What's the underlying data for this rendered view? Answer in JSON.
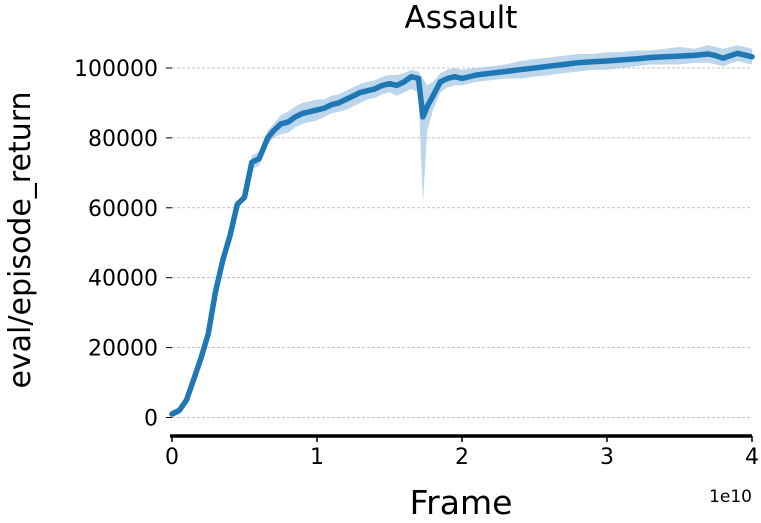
{
  "chart_data": {
    "type": "line",
    "title": "Assault",
    "xlabel": "Frame",
    "ylabel": "eval/episode_return",
    "x_offset_label": "1e10",
    "xlim": [
      0,
      4
    ],
    "ylim": [
      -3000,
      108000
    ],
    "xticks": [
      0,
      1,
      2,
      3,
      4
    ],
    "xtick_labels": [
      "0",
      "1",
      "2",
      "3",
      "4"
    ],
    "yticks": [
      0,
      20000,
      40000,
      60000,
      80000,
      100000
    ],
    "ytick_labels": [
      "0",
      "20000",
      "40000",
      "60000",
      "80000",
      "100000"
    ],
    "grid": "y-dashed",
    "line_color": "#1f77b4",
    "band_color": "#a6c8e6",
    "series": [
      {
        "x": [
          0.0,
          0.05,
          0.1,
          0.15,
          0.2,
          0.25,
          0.3,
          0.35,
          0.4,
          0.45,
          0.5,
          0.55,
          0.6,
          0.63,
          0.66,
          0.7,
          0.75,
          0.8,
          0.85,
          0.9,
          0.95,
          1.0,
          1.05,
          1.1,
          1.15,
          1.2,
          1.25,
          1.3,
          1.35,
          1.4,
          1.45,
          1.5,
          1.55,
          1.6,
          1.65,
          1.7,
          1.73,
          1.76,
          1.8,
          1.85,
          1.9,
          1.95,
          2.0,
          2.1,
          2.2,
          2.3,
          2.4,
          2.5,
          2.6,
          2.7,
          2.8,
          2.9,
          3.0,
          3.1,
          3.2,
          3.3,
          3.4,
          3.5,
          3.6,
          3.7,
          3.75,
          3.8,
          3.9,
          4.0
        ],
        "y": [
          1000,
          2000,
          5000,
          11000,
          17000,
          24000,
          36000,
          45000,
          52000,
          61000,
          63000,
          73000,
          74000,
          77000,
          80000,
          82000,
          84000,
          84500,
          86000,
          87000,
          87500,
          88000,
          88500,
          89500,
          90000,
          91000,
          92000,
          93000,
          93500,
          94000,
          95000,
          95500,
          95000,
          96000,
          97500,
          97000,
          86000,
          89000,
          92000,
          96000,
          97000,
          97500,
          97000,
          98000,
          98500,
          99000,
          99500,
          100000,
          100500,
          101000,
          101500,
          101800,
          102000,
          102300,
          102600,
          103000,
          103200,
          103400,
          103600,
          104000,
          103500,
          102800,
          104200,
          103200
        ],
        "y_lower": [
          0,
          1000,
          4000,
          10000,
          16000,
          23000,
          35000,
          44000,
          51000,
          60000,
          62000,
          71000,
          72000,
          75000,
          78000,
          80000,
          81000,
          81500,
          83000,
          84000,
          84500,
          85000,
          86000,
          87000,
          87500,
          88000,
          89000,
          90000,
          91000,
          91500,
          92500,
          93000,
          92000,
          93000,
          94000,
          93000,
          61000,
          82000,
          88000,
          93000,
          94500,
          95000,
          95000,
          96000,
          96500,
          97000,
          97000,
          97500,
          98000,
          98500,
          99000,
          99500,
          99500,
          100000,
          100500,
          101000,
          101000,
          101000,
          101500,
          101500,
          101000,
          100500,
          102000,
          101000
        ],
        "y_upper": [
          2000,
          3000,
          6000,
          12000,
          18000,
          25000,
          37000,
          46000,
          53000,
          62000,
          64000,
          75000,
          76000,
          79000,
          82000,
          84000,
          86500,
          87500,
          89000,
          90000,
          90500,
          91000,
          91000,
          92000,
          92500,
          93500,
          94500,
          95500,
          96000,
          96500,
          97500,
          98000,
          98000,
          98500,
          99500,
          99000,
          97000,
          95000,
          96000,
          98500,
          99500,
          100000,
          99500,
          100000,
          100500,
          101000,
          102000,
          102500,
          103000,
          103500,
          104000,
          104000,
          104500,
          104500,
          105000,
          105000,
          105500,
          106000,
          105500,
          106500,
          106000,
          105500,
          106500,
          105500
        ]
      }
    ]
  }
}
